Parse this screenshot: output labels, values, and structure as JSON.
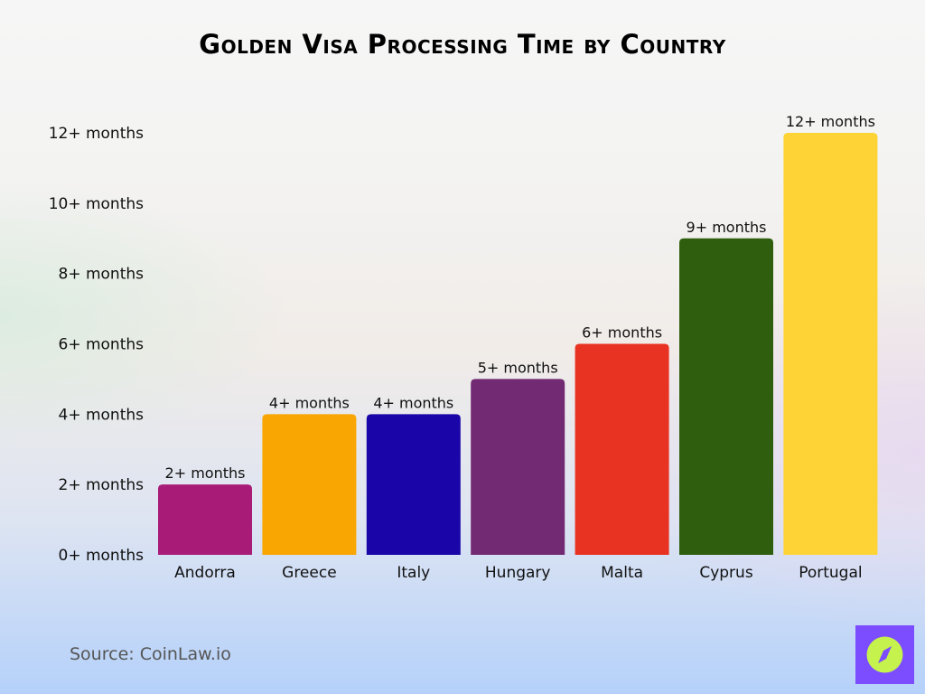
{
  "chart_data": {
    "type": "bar",
    "title": "Golden Visa Processing Time by Country",
    "categories": [
      "Andorra",
      "Greece",
      "Italy",
      "Hungary",
      "Malta",
      "Cyprus",
      "Portugal"
    ],
    "values": [
      2,
      4,
      4,
      5,
      6,
      9,
      12
    ],
    "data_labels": [
      "2+ months",
      "4+ months",
      "4+ months",
      "5+ months",
      "6+ months",
      "9+ months",
      "12+ months"
    ],
    "colors": [
      "#a81c78",
      "#f9a602",
      "#1a06a8",
      "#722a72",
      "#e83222",
      "#2f5e0e",
      "#fdd335"
    ],
    "yticks": [
      0,
      2,
      4,
      6,
      8,
      10,
      12
    ],
    "ytick_labels": [
      "0+ months",
      "2+ months",
      "4+ months",
      "6+ months",
      "8+ months",
      "10+ months",
      "12+ months"
    ],
    "ylim": [
      0,
      12
    ],
    "grid": false,
    "xlabel": "",
    "ylabel": ""
  },
  "footer": {
    "source": "Source: CoinLaw.io",
    "logo_icon": "compass-icon",
    "logo_bg": "#7c4dff",
    "logo_fg": "#c6f24e"
  }
}
